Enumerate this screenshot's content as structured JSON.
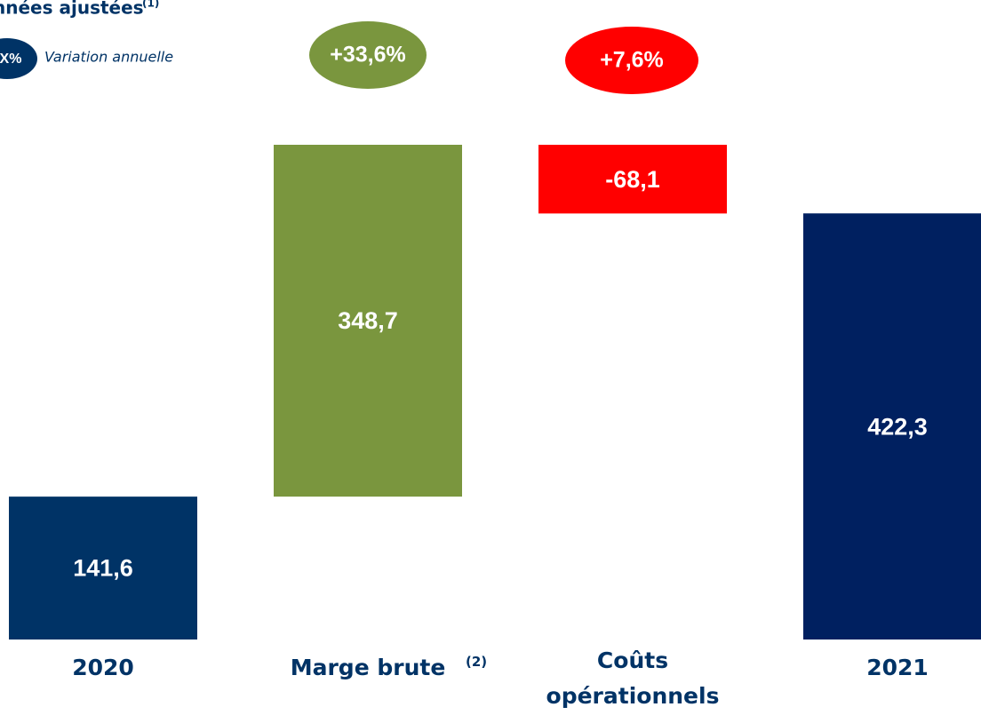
{
  "chart_data": {
    "type": "waterfall",
    "title": "nnées ajustées",
    "title_note": "(1)",
    "legend_symbol": "X%",
    "legend_label": "Variation annuelle",
    "categories": [
      "2020",
      "Marge brute",
      "Coûts opérationnels",
      "2021"
    ],
    "category_notes": [
      null,
      "(2)",
      null,
      null
    ],
    "measures": [
      "absolute",
      "relative",
      "relative",
      "total"
    ],
    "values": [
      141.6,
      348.7,
      -68.1,
      422.3
    ],
    "value_labels": [
      "141,6",
      "348,7",
      "-68,1",
      "422,3"
    ],
    "colors": [
      "#003366",
      "#7a963e",
      "#ff0000",
      "#002060"
    ],
    "changes": [
      null,
      33.6,
      7.6,
      null
    ],
    "change_labels": [
      null,
      "+33,6%",
      "+7,6%",
      null
    ]
  }
}
